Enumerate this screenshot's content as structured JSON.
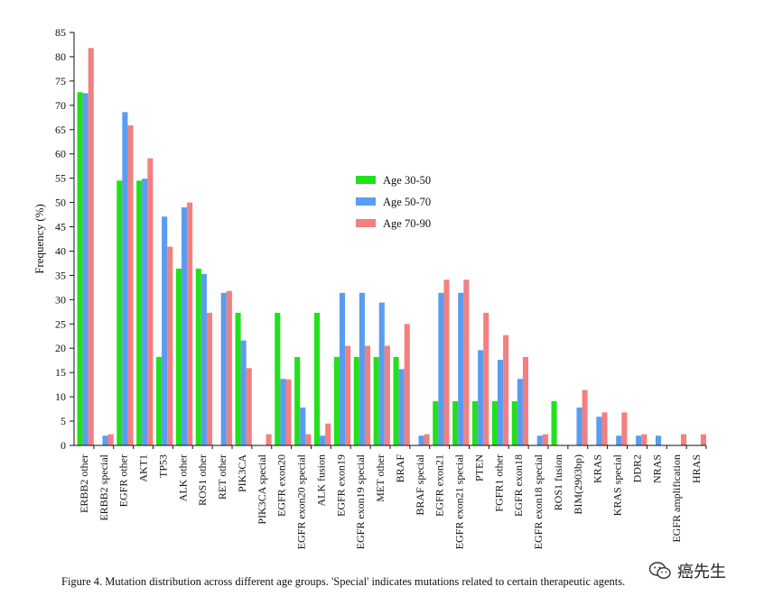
{
  "chart_data": {
    "type": "bar",
    "ylabel": "Frequency (%)",
    "xlabel": "",
    "ylim": [
      0,
      85
    ],
    "yticks": [
      0,
      5,
      10,
      15,
      20,
      25,
      30,
      35,
      40,
      45,
      50,
      55,
      60,
      65,
      70,
      75,
      80,
      85
    ],
    "legend_position": "center",
    "categories": [
      "ERBB2 other",
      "ERBB2 special",
      "EGFR other",
      "AKT1",
      "TP53",
      "ALK other",
      "ROS1 other",
      "RET other",
      "PIK3CA",
      "PIK3CA special",
      "EGFR exon20",
      "EGFR exon20 special",
      "ALK fusion",
      "EGFR exon19",
      "EGFR exon19 special",
      "MET other",
      "BRAF",
      "BRAF special",
      "EGFR exon21",
      "EGFR exon21 special",
      "PTEN",
      "FGFR1 other",
      "EGFR exon18",
      "EGFR exon18 special",
      "ROS1 fusion",
      "BIM(2903bp)",
      "KRAS",
      "KRAS special",
      "DDR2",
      "NRAS",
      "EGFR amplification",
      "HRAS"
    ],
    "series": [
      {
        "name": "Age  30-50",
        "color": "#22e01c",
        "values": [
          72.7,
          0,
          54.5,
          54.5,
          18.2,
          36.4,
          36.4,
          0,
          27.3,
          0,
          27.3,
          18.2,
          27.3,
          18.2,
          18.2,
          18.2,
          18.2,
          0,
          9.1,
          9.1,
          9.1,
          9.1,
          9.1,
          0,
          9.1,
          0,
          0,
          0,
          0,
          0,
          0,
          0
        ]
      },
      {
        "name": "Age  50-70",
        "color": "#5a9cf0",
        "values": [
          72.5,
          2.0,
          68.6,
          54.9,
          47.1,
          49.0,
          35.3,
          31.4,
          21.6,
          0,
          13.7,
          7.8,
          2.0,
          31.4,
          31.4,
          29.4,
          15.7,
          2.0,
          31.4,
          31.4,
          19.6,
          17.6,
          13.7,
          2.0,
          0,
          7.8,
          5.9,
          2.0,
          2.0,
          2.0,
          0,
          0
        ]
      },
      {
        "name": "Age  70-90",
        "color": "#f28080",
        "values": [
          81.8,
          2.3,
          65.9,
          59.1,
          40.9,
          50.0,
          27.3,
          31.8,
          15.9,
          2.3,
          13.6,
          2.3,
          4.5,
          20.5,
          20.5,
          20.5,
          25.0,
          2.3,
          34.1,
          34.1,
          27.3,
          22.7,
          18.2,
          2.3,
          0,
          11.4,
          6.8,
          6.8,
          2.3,
          0,
          2.3,
          2.3
        ]
      }
    ]
  },
  "caption": "Figure 4. Mutation distribution across different age groups. 'Special' indicates mutations related to certain therapeutic agents.",
  "watermark": {
    "text": "癌先生",
    "icon": "wechat-icon"
  }
}
